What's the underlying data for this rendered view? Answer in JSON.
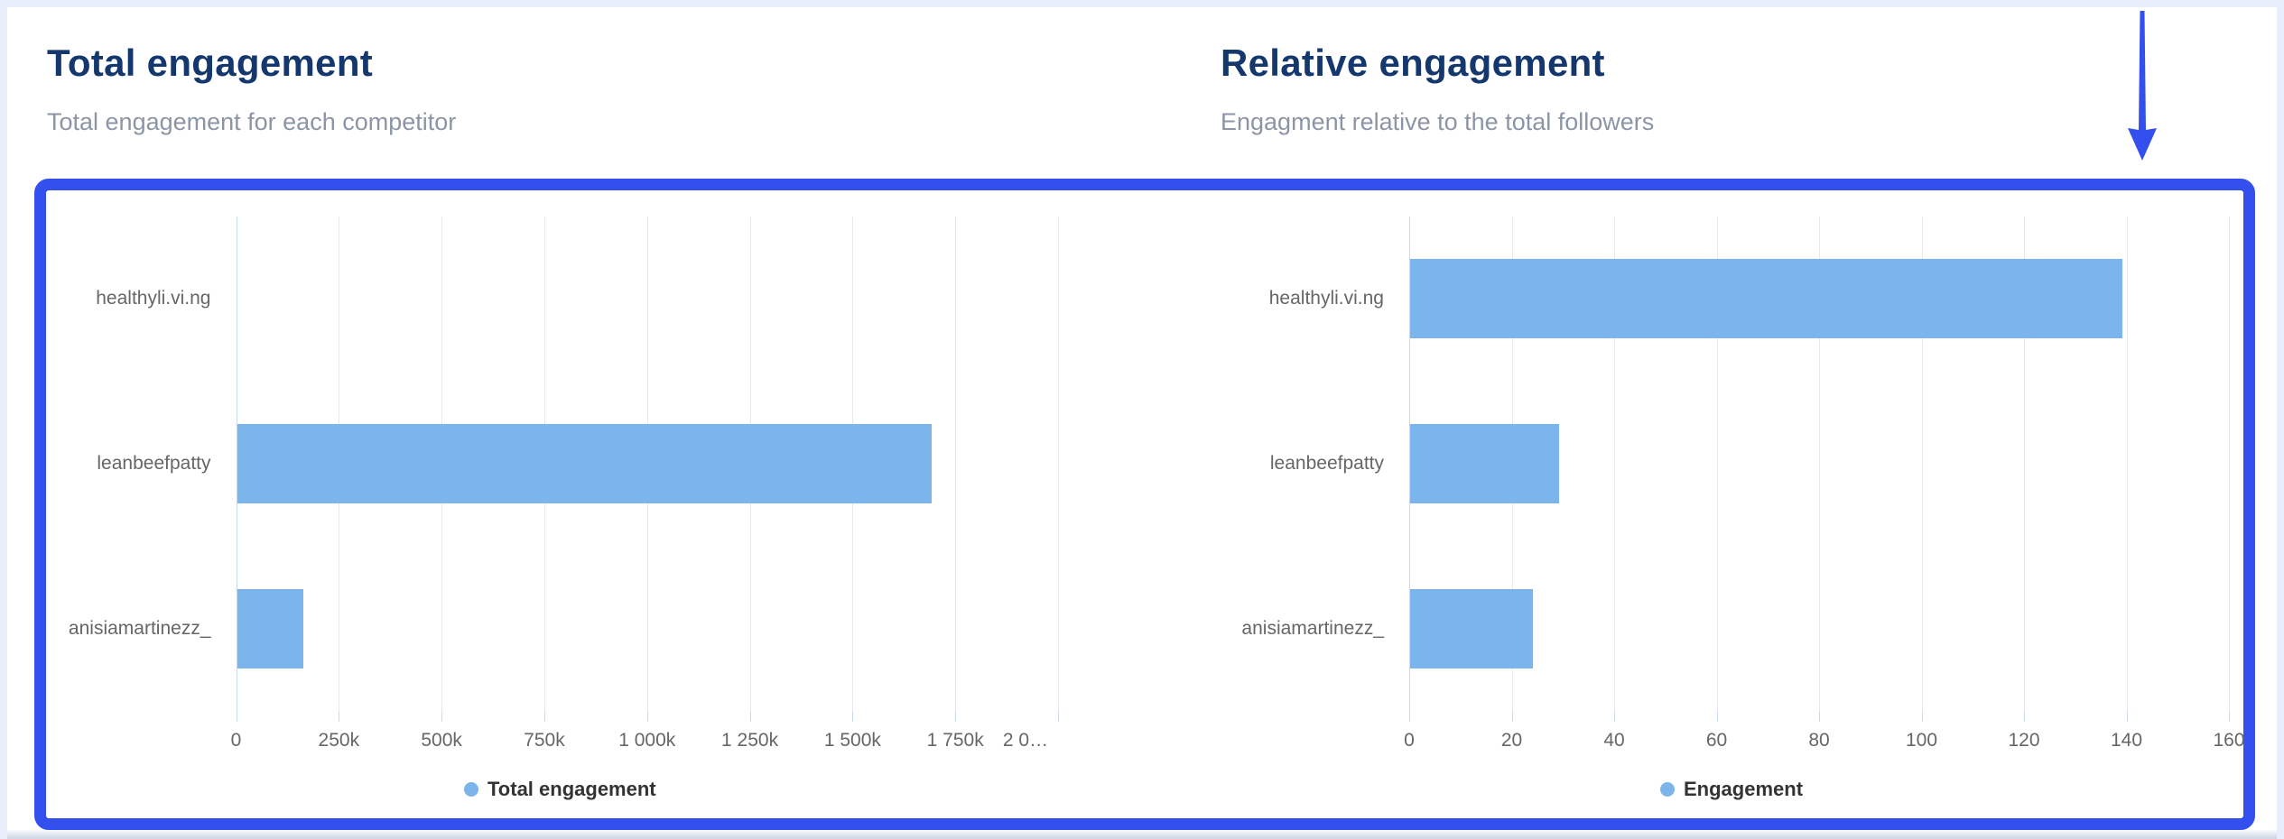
{
  "colors": {
    "bar_blue": "#7cb5ec",
    "highlight_blue": "#3350ee",
    "title_navy": "#14386e",
    "subtitle_gray": "#8b95a6",
    "axis_label_gray": "#666666",
    "legend_text": "#333333",
    "page_background": "#e7eefa"
  },
  "annotation": {
    "type": "down-arrow-and-border-highlight",
    "color": "#3350ee"
  },
  "chart_data": [
    {
      "type": "bar",
      "orientation": "horizontal",
      "title": "Total engagement",
      "subtitle": "Total engagement for each competitor",
      "categories": [
        "healthyli.vi.ng",
        "leanbeefpatty",
        "anisiamartinezz_"
      ],
      "values": [
        0,
        1690000,
        160000
      ],
      "xlim": [
        0,
        2000000
      ],
      "tick_step": 250000,
      "tick_labels": [
        "0",
        "250k",
        "500k",
        "750k",
        "1 000k",
        "1 250k",
        "1 500k",
        "1 750k",
        "2 0…"
      ],
      "last_tick_dx": -36,
      "grid": true,
      "legend": "Total engagement",
      "legend_position": "bottom",
      "bar_color": "#7cb5ec"
    },
    {
      "type": "bar",
      "orientation": "horizontal",
      "title": "Relative engagement",
      "subtitle": "Engagment relative to the total followers",
      "categories": [
        "healthyli.vi.ng",
        "leanbeefpatty",
        "anisiamartinezz_"
      ],
      "values": [
        139,
        29,
        24
      ],
      "xlim": [
        0,
        160
      ],
      "tick_step": 20,
      "tick_labels": [
        "0",
        "20",
        "40",
        "60",
        "80",
        "100",
        "120",
        "140",
        "160"
      ],
      "last_tick_dx": 0,
      "grid": true,
      "legend": "Engagement",
      "legend_position": "bottom",
      "bar_color": "#7cb5ec"
    }
  ]
}
